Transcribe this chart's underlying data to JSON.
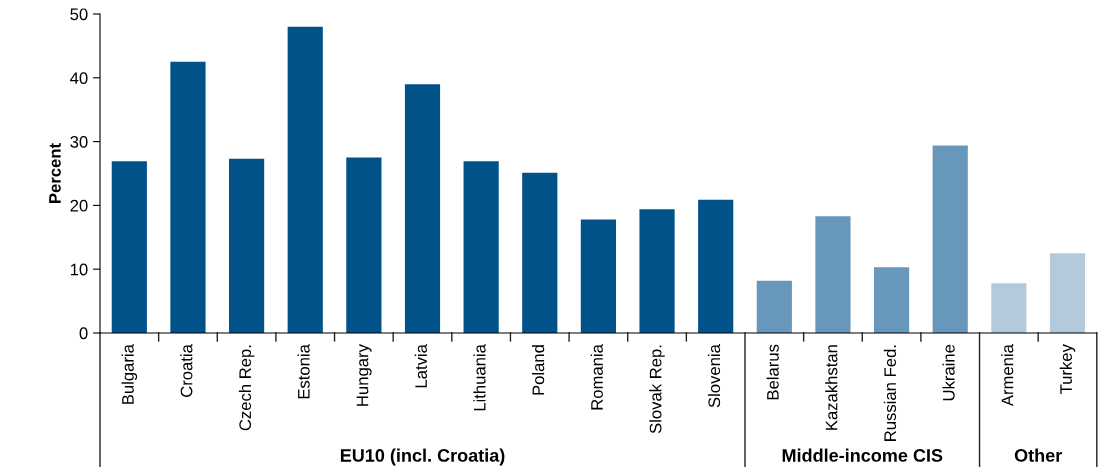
{
  "chart_data": {
    "type": "bar",
    "ylabel": "Percent",
    "categories": [
      "Bulgaria",
      "Croatia",
      "Czech Rep.",
      "Estonia",
      "Hungary",
      "Latvia",
      "Lithuania",
      "Poland",
      "Romania",
      "Slovak Rep.",
      "Slovenia",
      "Belarus",
      "Kazakhstan",
      "Russian Fed.",
      "Ukraine",
      "Armenia",
      "Turkey"
    ],
    "values": [
      26.9,
      42.5,
      27.3,
      48.0,
      27.5,
      39.0,
      26.9,
      25.1,
      17.8,
      19.4,
      20.9,
      8.2,
      18.3,
      10.3,
      29.4,
      7.8,
      12.5
    ],
    "colors": [
      "#02528a",
      "#02528a",
      "#02528a",
      "#02528a",
      "#02528a",
      "#02528a",
      "#02528a",
      "#02528a",
      "#02528a",
      "#02528a",
      "#02528a",
      "#6797bb",
      "#6797bb",
      "#6797bb",
      "#6797bb",
      "#b3cadc",
      "#b3cadc"
    ],
    "annotations": [
      "EU10 (incl. Croatia)",
      "Middle-income CIS",
      "Other"
    ],
    "ylim": [
      0,
      50
    ],
    "yticks": [
      0,
      10,
      20,
      30,
      40,
      50
    ],
    "grid": false,
    "legend": false
  }
}
